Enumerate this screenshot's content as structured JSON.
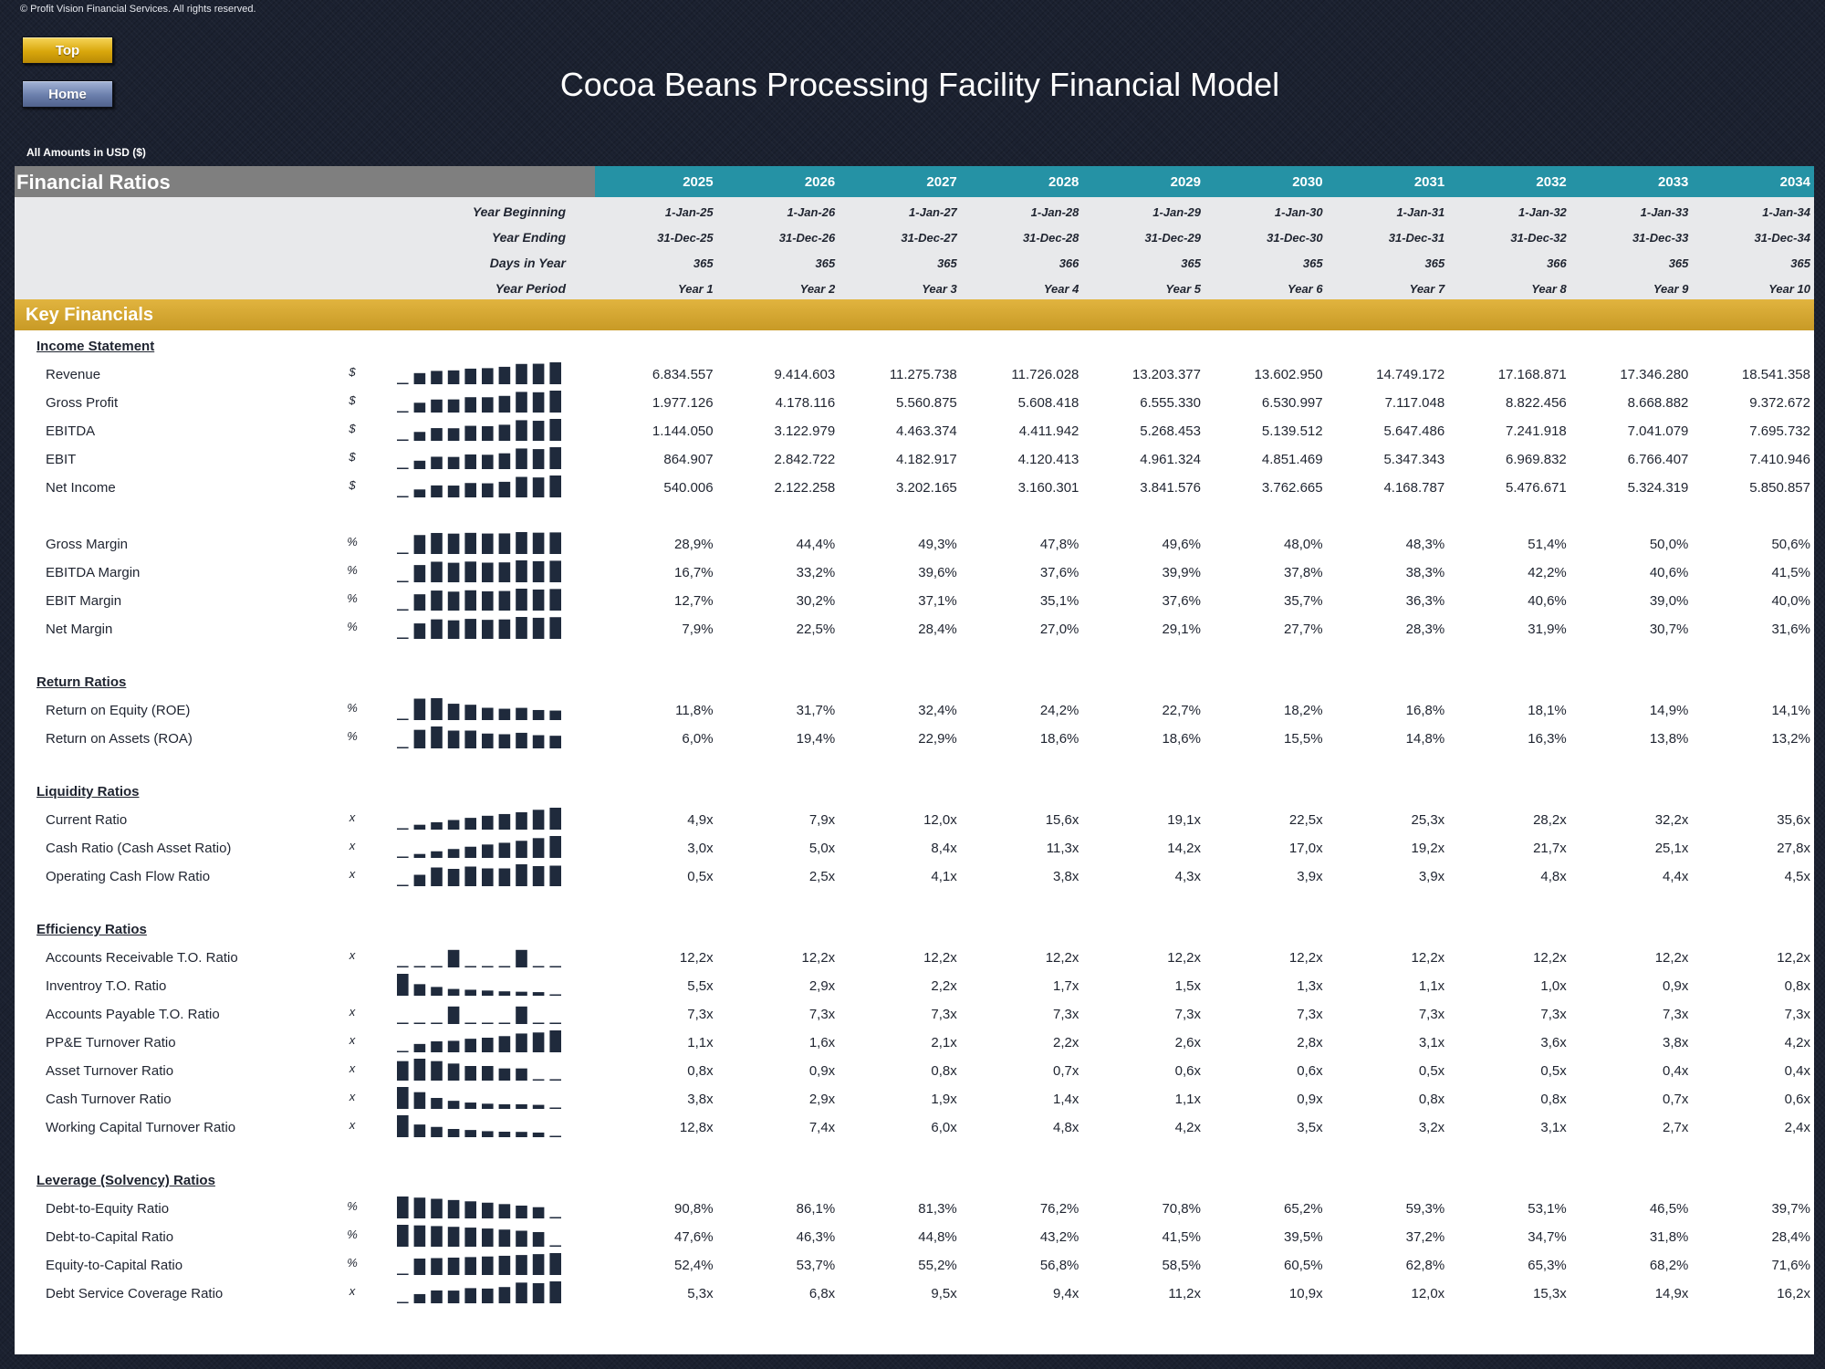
{
  "copyright": "© Profit Vision Financial Services. All rights reserved.",
  "nav": {
    "top_label": "Top",
    "home_label": "Home"
  },
  "title": "Cocoa Beans Processing Facility Financial Model",
  "amounts_note": "All Amounts in  USD ($)",
  "colors": {
    "header_gray": "#7f7f7f",
    "header_teal": "#2592a5",
    "section_gold": "#d4a732",
    "spark_bar": "#1f2a3c"
  },
  "header": {
    "label": "Financial Ratios",
    "years": [
      "2025",
      "2026",
      "2027",
      "2028",
      "2029",
      "2030",
      "2031",
      "2032",
      "2033",
      "2034"
    ]
  },
  "info_rows": [
    {
      "label": "Year Beginning",
      "values": [
        "1-Jan-25",
        "1-Jan-26",
        "1-Jan-27",
        "1-Jan-28",
        "1-Jan-29",
        "1-Jan-30",
        "1-Jan-31",
        "1-Jan-32",
        "1-Jan-33",
        "1-Jan-34"
      ]
    },
    {
      "label": "Year Ending",
      "values": [
        "31-Dec-25",
        "31-Dec-26",
        "31-Dec-27",
        "31-Dec-28",
        "31-Dec-29",
        "31-Dec-30",
        "31-Dec-31",
        "31-Dec-32",
        "31-Dec-33",
        "31-Dec-34"
      ]
    },
    {
      "label": "Days in Year",
      "values": [
        "365",
        "365",
        "365",
        "366",
        "365",
        "365",
        "365",
        "366",
        "365",
        "365"
      ]
    },
    {
      "label": "Year Period",
      "values": [
        "Year 1",
        "Year 2",
        "Year 3",
        "Year 4",
        "Year 5",
        "Year 6",
        "Year 7",
        "Year 8",
        "Year 9",
        "Year 10"
      ]
    }
  ],
  "section_title": "Key Financials",
  "groups": [
    {
      "title": "Income Statement",
      "rows": [
        {
          "label": "Revenue",
          "unit": "$",
          "values": [
            "6.834.557",
            "9.414.603",
            "11.275.738",
            "11.726.028",
            "13.203.377",
            "13.602.950",
            "14.749.172",
            "17.168.871",
            "17.346.280",
            "18.541.358"
          ]
        },
        {
          "label": "Gross Profit",
          "unit": "$",
          "values": [
            "1.977.126",
            "4.178.116",
            "5.560.875",
            "5.608.418",
            "6.555.330",
            "6.530.997",
            "7.117.048",
            "8.822.456",
            "8.668.882",
            "9.372.672"
          ]
        },
        {
          "label": "EBITDA",
          "unit": "$",
          "values": [
            "1.144.050",
            "3.122.979",
            "4.463.374",
            "4.411.942",
            "5.268.453",
            "5.139.512",
            "5.647.486",
            "7.241.918",
            "7.041.079",
            "7.695.732"
          ]
        },
        {
          "label": "EBIT",
          "unit": "$",
          "values": [
            "864.907",
            "2.842.722",
            "4.182.917",
            "4.120.413",
            "4.961.324",
            "4.851.469",
            "5.347.343",
            "6.969.832",
            "6.766.407",
            "7.410.946"
          ]
        },
        {
          "label": "Net Income",
          "unit": "$",
          "values": [
            "540.006",
            "2.122.258",
            "3.202.165",
            "3.160.301",
            "3.841.576",
            "3.762.665",
            "4.168.787",
            "5.476.671",
            "5.324.319",
            "5.850.857"
          ]
        },
        {
          "spacer": true
        },
        {
          "label": "Gross Margin",
          "unit": "%",
          "values": [
            "28,9%",
            "44,4%",
            "49,3%",
            "47,8%",
            "49,6%",
            "48,0%",
            "48,3%",
            "51,4%",
            "50,0%",
            "50,6%"
          ]
        },
        {
          "label": "EBITDA Margin",
          "unit": "%",
          "values": [
            "16,7%",
            "33,2%",
            "39,6%",
            "37,6%",
            "39,9%",
            "37,8%",
            "38,3%",
            "42,2%",
            "40,6%",
            "41,5%"
          ]
        },
        {
          "label": "EBIT Margin",
          "unit": "%",
          "values": [
            "12,7%",
            "30,2%",
            "37,1%",
            "35,1%",
            "37,6%",
            "35,7%",
            "36,3%",
            "40,6%",
            "39,0%",
            "40,0%"
          ]
        },
        {
          "label": "Net Margin",
          "unit": "%",
          "values": [
            "7,9%",
            "22,5%",
            "28,4%",
            "27,0%",
            "29,1%",
            "27,7%",
            "28,3%",
            "31,9%",
            "30,7%",
            "31,6%"
          ]
        }
      ]
    },
    {
      "title": "Return Ratios",
      "rows": [
        {
          "label": "Return on Equity (ROE)",
          "unit": "%",
          "values": [
            "11,8%",
            "31,7%",
            "32,4%",
            "24,2%",
            "22,7%",
            "18,2%",
            "16,8%",
            "18,1%",
            "14,9%",
            "14,1%"
          ]
        },
        {
          "label": "Return on Assets (ROA)",
          "unit": "%",
          "values": [
            "6,0%",
            "19,4%",
            "22,9%",
            "18,6%",
            "18,6%",
            "15,5%",
            "14,8%",
            "16,3%",
            "13,8%",
            "13,2%"
          ]
        }
      ]
    },
    {
      "title": "Liquidity Ratios",
      "rows": [
        {
          "label": "Current Ratio",
          "unit": "x",
          "values": [
            "4,9x",
            "7,9x",
            "12,0x",
            "15,6x",
            "19,1x",
            "22,5x",
            "25,3x",
            "28,2x",
            "32,2x",
            "35,6x"
          ]
        },
        {
          "label": "Cash Ratio (Cash Asset Ratio)",
          "unit": "x",
          "values": [
            "3,0x",
            "5,0x",
            "8,4x",
            "11,3x",
            "14,2x",
            "17,0x",
            "19,2x",
            "21,7x",
            "25,1x",
            "27,8x"
          ]
        },
        {
          "label": "Operating Cash Flow Ratio",
          "unit": "x",
          "values": [
            "0,5x",
            "2,5x",
            "4,1x",
            "3,8x",
            "4,3x",
            "3,9x",
            "3,9x",
            "4,8x",
            "4,4x",
            "4,5x"
          ]
        }
      ]
    },
    {
      "title": "Efficiency Ratios",
      "rows": [
        {
          "label": "Accounts Receivable T.O. Ratio",
          "unit": "x",
          "values": [
            "12,2x",
            "12,2x",
            "12,2x",
            "12,2x",
            "12,2x",
            "12,2x",
            "12,2x",
            "12,2x",
            "12,2x",
            "12,2x"
          ],
          "spark": [
            0,
            0,
            0,
            0.8,
            0,
            0,
            0,
            0.8,
            0,
            0
          ]
        },
        {
          "label": "Inventroy T.O. Ratio",
          "unit": "",
          "values": [
            "5,5x",
            "2,9x",
            "2,2x",
            "1,7x",
            "1,5x",
            "1,3x",
            "1,1x",
            "1,0x",
            "0,9x",
            "0,8x"
          ]
        },
        {
          "label": "Accounts Payable T.O. Ratio",
          "unit": "x",
          "values": [
            "7,3x",
            "7,3x",
            "7,3x",
            "7,3x",
            "7,3x",
            "7,3x",
            "7,3x",
            "7,3x",
            "7,3x",
            "7,3x"
          ],
          "spark": [
            0,
            0,
            0,
            0.8,
            0,
            0,
            0,
            0.8,
            0,
            0
          ]
        },
        {
          "label": "PP&E Turnover Ratio",
          "unit": "x",
          "values": [
            "1,1x",
            "1,6x",
            "2,1x",
            "2,2x",
            "2,6x",
            "2,8x",
            "3,1x",
            "3,6x",
            "3,8x",
            "4,2x"
          ]
        },
        {
          "label": "Asset Turnover Ratio",
          "unit": "x",
          "values": [
            "0,8x",
            "0,9x",
            "0,8x",
            "0,7x",
            "0,6x",
            "0,6x",
            "0,5x",
            "0,5x",
            "0,4x",
            "0,4x"
          ]
        },
        {
          "label": "Cash Turnover Ratio",
          "unit": "x",
          "values": [
            "3,8x",
            "2,9x",
            "1,9x",
            "1,4x",
            "1,1x",
            "0,9x",
            "0,8x",
            "0,8x",
            "0,7x",
            "0,6x"
          ]
        },
        {
          "label": "Working Capital Turnover Ratio",
          "unit": "x",
          "values": [
            "12,8x",
            "7,4x",
            "6,0x",
            "4,8x",
            "4,2x",
            "3,5x",
            "3,2x",
            "3,1x",
            "2,7x",
            "2,4x"
          ]
        }
      ]
    },
    {
      "title": "Leverage (Solvency) Ratios",
      "rows": [
        {
          "label": "Debt-to-Equity Ratio",
          "unit": "%",
          "values": [
            "90,8%",
            "86,1%",
            "81,3%",
            "76,2%",
            "70,8%",
            "65,2%",
            "59,3%",
            "53,1%",
            "46,5%",
            "39,7%"
          ]
        },
        {
          "label": "Debt-to-Capital Ratio",
          "unit": "%",
          "values": [
            "47,6%",
            "46,3%",
            "44,8%",
            "43,2%",
            "41,5%",
            "39,5%",
            "37,2%",
            "34,7%",
            "31,8%",
            "28,4%"
          ]
        },
        {
          "label": "Equity-to-Capital Ratio",
          "unit": "%",
          "values": [
            "52,4%",
            "53,7%",
            "55,2%",
            "56,8%",
            "58,5%",
            "60,5%",
            "62,8%",
            "65,3%",
            "68,2%",
            "71,6%"
          ]
        },
        {
          "label": "Debt Service Coverage Ratio",
          "unit": "x",
          "values": [
            "5,3x",
            "6,8x",
            "9,5x",
            "9,4x",
            "11,2x",
            "10,9x",
            "12,0x",
            "15,3x",
            "14,9x",
            "16,2x"
          ]
        }
      ]
    }
  ]
}
